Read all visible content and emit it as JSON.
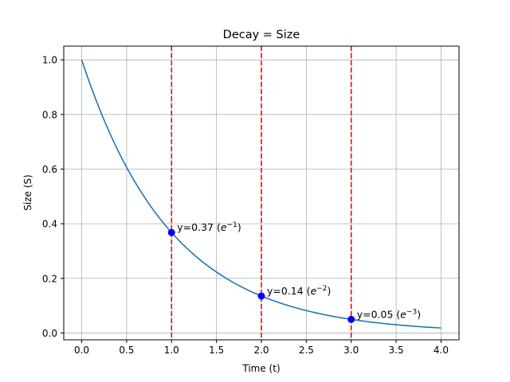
{
  "chart_data": {
    "type": "line",
    "title": "Decay = Size",
    "xlabel": "Time (t)",
    "ylabel": "Size (S)",
    "xlim": [
      -0.2,
      4.2
    ],
    "ylim": [
      -0.025,
      1.05
    ],
    "grid": true,
    "x_ticks": [
      0.0,
      0.5,
      1.0,
      1.5,
      2.0,
      2.5,
      3.0,
      3.5,
      4.0
    ],
    "x_tick_labels": [
      "0.0",
      "0.5",
      "1.0",
      "1.5",
      "2.0",
      "2.5",
      "3.0",
      "3.5",
      "4.0"
    ],
    "y_ticks": [
      0.0,
      0.2,
      0.4,
      0.6,
      0.8,
      1.0
    ],
    "y_tick_labels": [
      "0.0",
      "0.2",
      "0.4",
      "0.6",
      "0.8",
      "1.0"
    ],
    "curve": {
      "function": "exp(-t)",
      "x_start": 0,
      "x_end": 4,
      "color": "#1f77b4"
    },
    "vertical_lines": [
      {
        "x": 1,
        "color": "#ff0000",
        "style": "dashed"
      },
      {
        "x": 2,
        "color": "#ff0000",
        "style": "dashed"
      },
      {
        "x": 3,
        "color": "#ff0000",
        "style": "dashed"
      }
    ],
    "points": [
      {
        "x": 1,
        "y": 0.3679,
        "label_value": "y=0.37 (",
        "label_base": "e",
        "label_exp": "−1",
        "label_close": ")"
      },
      {
        "x": 2,
        "y": 0.1353,
        "label_value": "y=0.14 (",
        "label_base": "e",
        "label_exp": "−2",
        "label_close": ")"
      },
      {
        "x": 3,
        "y": 0.0498,
        "label_value": "y=0.05 (",
        "label_base": "e",
        "label_exp": "−3",
        "label_close": ")"
      }
    ],
    "point_color": "#0000ff"
  }
}
